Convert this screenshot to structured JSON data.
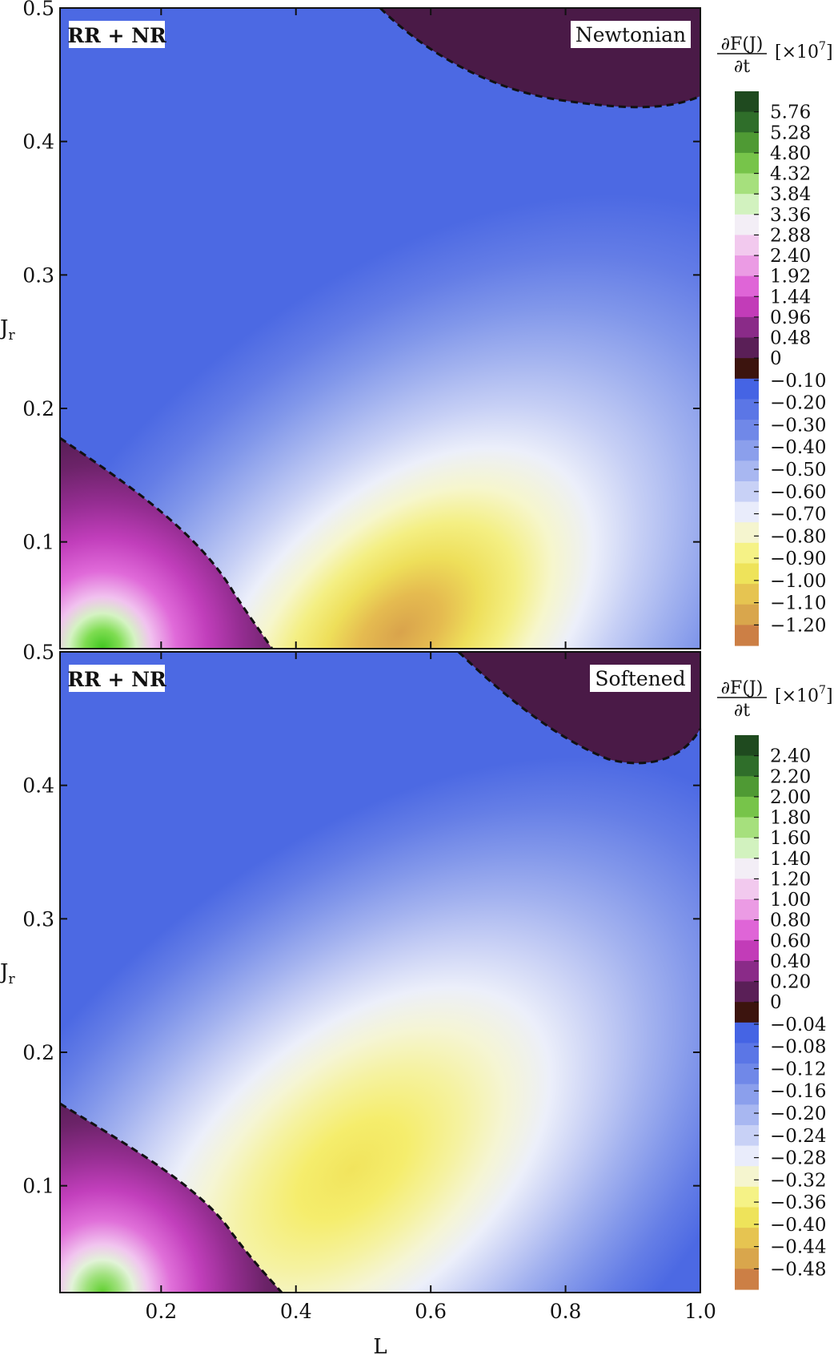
{
  "chart_data": [
    {
      "type": "heatmap",
      "subtype": "filled-contour",
      "panel": "top",
      "left_tag": "RR + NR",
      "right_tag": "Newtonian",
      "xlabel": "L",
      "ylabel": "J",
      "ylabel_sub": "r",
      "xlim": [
        0.05,
        1.0
      ],
      "ylim": [
        0.02,
        0.5
      ],
      "x_ticks": [
        0.2,
        0.4,
        0.6,
        0.8,
        1.0
      ],
      "y_ticks": [
        0.1,
        0.2,
        0.3,
        0.4,
        0.5
      ],
      "y_tick_labels": [
        "0.1",
        "0.2",
        "0.3",
        "0.4",
        "0.5"
      ],
      "x_tick_labels_visible": false,
      "zero_contour": "dashed",
      "features": {
        "positive_corner_peak": {
          "L": 0.1,
          "Jr": 0.02
        },
        "negative_minimum": {
          "L": 0.55,
          "Jr": 0.05
        },
        "positive_top_region_start_L": 0.55
      },
      "colorbar": {
        "title_numerator": "∂F(J)",
        "title_denominator": "∂t",
        "title_scale": "[×10",
        "title_exponent": "7",
        "title_close": "]",
        "labels": [
          "5.76",
          "5.28",
          "4.80",
          "4.32",
          "3.84",
          "3.36",
          "2.88",
          "2.40",
          "1.92",
          "1.44",
          "0.96",
          "0.48",
          "0",
          "−0.10",
          "−0.20",
          "−0.30",
          "−0.40",
          "−0.50",
          "−0.60",
          "−0.70",
          "−0.80",
          "−0.90",
          "−1.00",
          "−1.10",
          "−1.20"
        ],
        "colors": [
          "#1f4a1f",
          "#2f6e2a",
          "#4f9a34",
          "#77c44a",
          "#a6e07d",
          "#d2f2bf",
          "#f3eef6",
          "#f2c9ee",
          "#eb9be4",
          "#df65d7",
          "#c23cb8",
          "#8a2b88",
          "#5a1f57",
          "#3c140e",
          "#4564e4",
          "#5b76e6",
          "#7088e8",
          "#8b9fec",
          "#a8b7f1",
          "#c8d1f6",
          "#e9ecfb",
          "#f5f5cf",
          "#f5f286",
          "#eee35a",
          "#e6c451",
          "#d9a64c",
          "#cc7f45"
        ]
      }
    },
    {
      "type": "heatmap",
      "subtype": "filled-contour",
      "panel": "bottom",
      "left_tag": "RR + NR",
      "right_tag": "Softened",
      "xlabel": "L",
      "ylabel": "J",
      "ylabel_sub": "r",
      "xlim": [
        0.05,
        1.0
      ],
      "ylim": [
        0.02,
        0.5
      ],
      "x_ticks": [
        0.2,
        0.4,
        0.6,
        0.8,
        1.0
      ],
      "x_tick_labels": [
        "0.2",
        "0.4",
        "0.6",
        "0.8",
        "1.0"
      ],
      "y_ticks": [
        0.1,
        0.2,
        0.3,
        0.4,
        0.5
      ],
      "y_tick_labels": [
        "0.1",
        "0.2",
        "0.3",
        "0.4",
        "0.5"
      ],
      "zero_contour": "dashed",
      "features": {
        "positive_corner_peak": {
          "L": 0.1,
          "Jr": 0.02
        },
        "negative_minimum": {
          "L": 0.5,
          "Jr": 0.09
        },
        "positive_top_region_start_L": 0.66
      },
      "colorbar": {
        "title_numerator": "∂F(J)",
        "title_denominator": "∂t",
        "title_scale": "[×10",
        "title_exponent": "7",
        "title_close": "]",
        "labels": [
          "2.40",
          "2.20",
          "2.00",
          "1.80",
          "1.60",
          "1.40",
          "1.20",
          "1.00",
          "0.80",
          "0.60",
          "0.40",
          "0.20",
          "0",
          "−0.04",
          "−0.08",
          "−0.12",
          "−0.16",
          "−0.20",
          "−0.24",
          "−0.28",
          "−0.32",
          "−0.36",
          "−0.40",
          "−0.44",
          "−0.48"
        ],
        "colors": [
          "#1f4a1f",
          "#2f6e2a",
          "#4f9a34",
          "#77c44a",
          "#a6e07d",
          "#d2f2bf",
          "#f3eef6",
          "#f2c9ee",
          "#eb9be4",
          "#df65d7",
          "#c23cb8",
          "#8a2b88",
          "#5a1f57",
          "#3c140e",
          "#4564e4",
          "#5b76e6",
          "#7088e8",
          "#8b9fec",
          "#a8b7f1",
          "#c8d1f6",
          "#e9ecfb",
          "#f5f5cf",
          "#f5f286",
          "#eee35a",
          "#e6c451",
          "#d9a64c",
          "#cc7f45"
        ]
      }
    }
  ],
  "colors": {
    "positive_dark": "#4a1a47",
    "negative_blue": "#4a66e3",
    "frame": "#111111",
    "dashed_contour": "#111111"
  }
}
